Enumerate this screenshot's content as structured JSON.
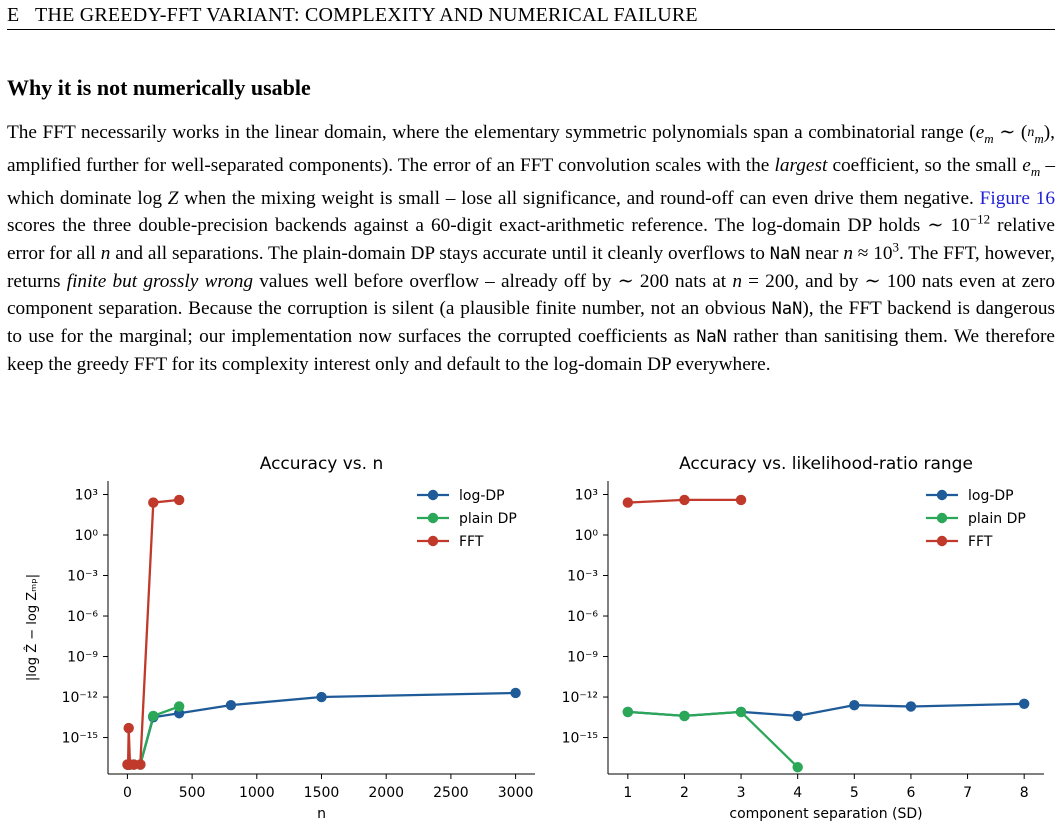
{
  "header": {
    "number": "E",
    "title": "THE GREEDY-FFT VARIANT: COMPLEXITY AND NUMERICAL FAILURE"
  },
  "section": {
    "title": "Why it is not numerically usable"
  },
  "body": {
    "t1": "The FFT necessarily works in the linear domain, where the elementary symmetric polynomials span a combinatorial range (",
    "t1b": "e",
    "t1c": "m",
    "t1d": " ∼ (",
    "t1e": "n",
    "t1f": "m",
    "t1g": "), amplified further for well-separated components). The error of an FFT convolution scales with the ",
    "largest": "largest",
    "t2": " coefficient, so the small ",
    "t2b": "e",
    "t2c": "m",
    "t2d": " – which dominate log ",
    "t2e": "Z",
    "t2f": " when the mixing weight is small – lose all significance, and round-off can even drive them negative. ",
    "figref": "Figure 16",
    "t3": " scores the three double-precision backends against a 60-digit exact-arithmetic reference. The log-domain DP holds ∼ 10",
    "t3sup": "−12",
    "t3b": " relative error for all ",
    "t3n": "n",
    "t3c": " and all separations. The plain-domain DP stays accurate until it cleanly overflows to ",
    "nan1": "NaN",
    "t3d": " near ",
    "t3n2": "n",
    "t3e": " ≈ 10",
    "t3sup2": "3",
    "t3f": ". The FFT, however, returns ",
    "finite": "finite but grossly wrong",
    "t4": " values well before overflow – already off by ∼ 200 nats at ",
    "t4n": "n",
    "t4b": " = 200, and by ∼ 100 nats even at zero component separation. Because the corruption is silent (a plausible finite number, not an obvious ",
    "nan2": "NaN",
    "t4c": "), the FFT backend is dangerous to use for the marginal; our implementation now surfaces the corrupted coefficients as ",
    "nan3": "NaN",
    "t4d": " rather than sanitising them. We therefore keep the greedy FFT for its complexity interest only and default to the log-domain DP everywhere."
  },
  "chart_data": [
    {
      "type": "line",
      "title": "Accuracy vs. n",
      "xlabel": "n",
      "ylabel": "|log Ẑ − log Z_mp|",
      "yscale": "log",
      "xlim": [
        -150,
        3150
      ],
      "ylim_exp": [
        -17.7,
        4.0
      ],
      "xticks": [
        0,
        500,
        1000,
        1500,
        2000,
        2500,
        3000
      ],
      "yticks_exp": [
        3,
        0,
        -3,
        -6,
        -9,
        -12,
        -15
      ],
      "legend": "top-right",
      "series": [
        {
          "name": "log-DP",
          "color": "#1f5b99",
          "x": [
            1,
            2,
            5,
            10,
            20,
            50,
            100,
            200,
            400,
            800,
            1500,
            3000
          ],
          "y_exp": [
            -17,
            -17,
            -17,
            -17,
            -17,
            -17,
            -17,
            -13.5,
            -13.2,
            -12.6,
            -12.0,
            -11.7
          ]
        },
        {
          "name": "plain DP",
          "color": "#2aa757",
          "x": [
            1,
            2,
            5,
            10,
            20,
            50,
            100,
            200,
            400
          ],
          "y_exp": [
            -17,
            -17,
            -17,
            -17,
            -17,
            -17,
            -17,
            -13.4,
            -12.7
          ]
        },
        {
          "name": "FFT",
          "color": "#c0392b",
          "x": [
            1,
            2,
            5,
            10,
            20,
            50,
            100,
            200,
            400
          ],
          "y_exp": [
            -17,
            -17,
            -17,
            -14.3,
            -17,
            -17,
            -17,
            2.4,
            2.6
          ]
        }
      ]
    },
    {
      "type": "line",
      "title": "Accuracy vs. likelihood-ratio range",
      "xlabel": "component separation (SD)",
      "ylabel": "",
      "yscale": "log",
      "xlim": [
        0.65,
        8.35
      ],
      "ylim_exp": [
        -17.7,
        4.0
      ],
      "xticks": [
        1,
        2,
        3,
        4,
        5,
        6,
        7,
        8
      ],
      "yticks_exp": [
        3,
        0,
        -3,
        -6,
        -9,
        -12,
        -15
      ],
      "legend": "top-right",
      "series": [
        {
          "name": "log-DP",
          "color": "#1f5b99",
          "x": [
            1,
            2,
            3,
            4,
            5,
            6,
            8
          ],
          "y_exp": [
            -13.1,
            -13.4,
            -13.1,
            -13.4,
            -12.6,
            -12.7,
            -12.5
          ]
        },
        {
          "name": "plain DP",
          "color": "#2aa757",
          "x": [
            1,
            2,
            3,
            4
          ],
          "y_exp": [
            -13.1,
            -13.4,
            -13.1,
            -17.2
          ]
        },
        {
          "name": "FFT",
          "color": "#c0392b",
          "x": [
            1,
            2,
            3
          ],
          "y_exp": [
            2.4,
            2.6,
            2.6
          ]
        }
      ]
    }
  ]
}
